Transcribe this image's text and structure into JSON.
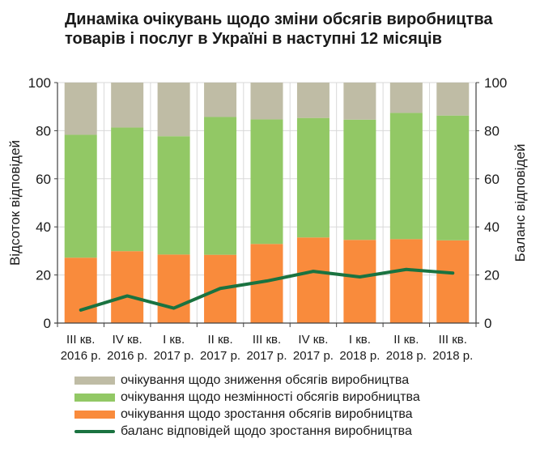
{
  "chart_data": {
    "type": "bar",
    "stacked": true,
    "title": "Динаміка очікувань щодо зміни обсягів виробництва товарів і послуг в Україні в наступні 12 місяців",
    "title_lines": [
      "Динаміка очікувань щодо зміни обсягів виробництва",
      "товарів і послуг в Україні в наступні 12 місяців"
    ],
    "categories": [
      [
        "III кв.",
        "2016 р."
      ],
      [
        "IV кв.",
        "2016 р."
      ],
      [
        "I кв.",
        "2017 р."
      ],
      [
        "II кв.",
        "2017 р."
      ],
      [
        "III кв.",
        "2017 р."
      ],
      [
        "IV кв.",
        "2017 р."
      ],
      [
        "I кв.",
        "2018 р."
      ],
      [
        "II кв.",
        "2018 р."
      ],
      [
        "III кв.",
        "2018 р."
      ]
    ],
    "ylabel": "Відсоток відповідей",
    "y2label": "Баланс відповідей",
    "ylim": [
      0,
      100
    ],
    "y2lim": [
      0,
      100
    ],
    "yticks": [
      0,
      20,
      40,
      60,
      80,
      100
    ],
    "y2ticks": [
      0,
      20,
      40,
      60,
      80,
      100
    ],
    "grid": true,
    "legend_position": "bottom",
    "series": [
      {
        "name": "очікування щодо зростання обсягів виробництва",
        "type": "bar",
        "color": "#f98b3c",
        "values": [
          27.2,
          29.9,
          28.5,
          28.4,
          32.9,
          35.6,
          34.6,
          34.9,
          34.4
        ]
      },
      {
        "name": "очікування щодо незмінності обсягів виробництва",
        "type": "bar",
        "color": "#92c865",
        "values": [
          51.1,
          51.4,
          49.2,
          57.3,
          51.8,
          49.7,
          50.0,
          52.5,
          51.9
        ]
      },
      {
        "name": "очікування щодо зниження обсягів виробництва",
        "type": "bar",
        "color": "#bfbca5",
        "values": [
          21.7,
          18.7,
          22.3,
          14.3,
          15.3,
          14.7,
          15.4,
          12.6,
          13.7
        ]
      },
      {
        "name": "баланс відповідей щодо зростання виробництва",
        "type": "line",
        "axis": "right",
        "color": "#1a7340",
        "values": [
          5.4,
          11.3,
          6.2,
          14.4,
          17.5,
          21.5,
          19.2,
          22.3,
          20.8
        ]
      }
    ],
    "legend_order": [
      2,
      1,
      0,
      3
    ]
  }
}
